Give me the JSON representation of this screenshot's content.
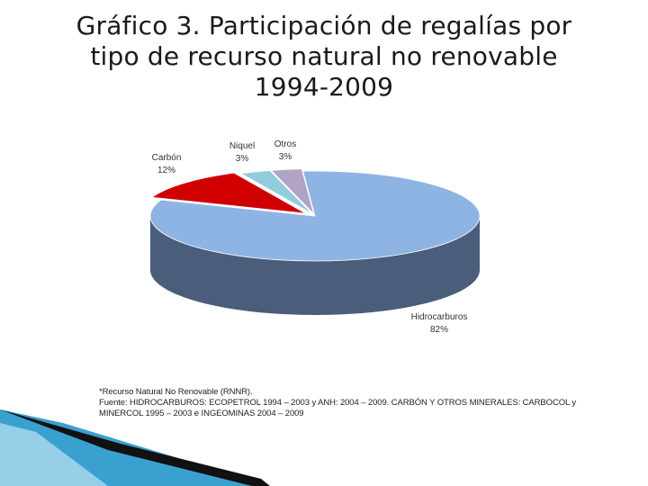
{
  "title_lines": [
    "Gráfico 3. Participación de regalías por",
    "tipo de recurso natural no renovable",
    "1994-2009"
  ],
  "chart_data": {
    "type": "pie",
    "style": "3d-exploded",
    "title": "Gráfico 3. Participación de regalías por tipo de recurso natural no renovable 1994-2009",
    "slices": [
      {
        "name": "Hidrocarburos",
        "value": 82,
        "label": "82%",
        "color": "#8eb4e3",
        "side_color": "#4a5d7a"
      },
      {
        "name": "Carbón",
        "value": 12,
        "label": "12%",
        "color": "#d00000",
        "side_color": "#7a0000"
      },
      {
        "name": "Niquel",
        "value": 3,
        "label": "3%",
        "color": "#93cddd",
        "side_color": "#4f8a99"
      },
      {
        "name": "Otros",
        "value": 3,
        "label": "3%",
        "color": "#b3a2c7",
        "side_color": "#6f5f85"
      }
    ]
  },
  "footnote": {
    "line1": "*Recurso Natural No Renovable (RNNR).",
    "line2": "Fuente: HIDROCARBUROS: ECOPETROL 1994 – 2003 y ANH: 2004 – 2009. CARBÓN Y OTROS MINERALES: CARBOCOL y",
    "line3": "MINERCOL 1995 – 2003 e INGEOMINAS 2004 – 2009"
  },
  "colors": {
    "decor_dark": "#111111",
    "decor_teal": "#3aa0d0",
    "decor_light": "#bfe3f2"
  }
}
